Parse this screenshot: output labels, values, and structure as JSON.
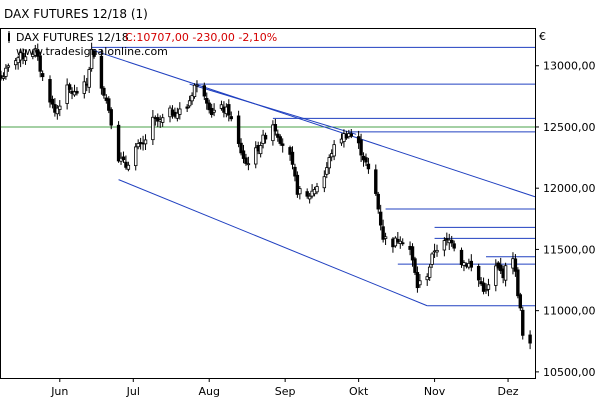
{
  "window": {
    "title": "DAX FUTURES 12/18 (1)"
  },
  "legend": {
    "symbol": "DAX FUTURES 12/18",
    "close_text": "C:10707,00",
    "change_text": "-230,00",
    "change_pct_text": "-2,10%",
    "close_color": "#d40000"
  },
  "watermark": "www.tradesignalonline.com",
  "currency": "€",
  "colors": {
    "candle": "#000000",
    "trendline": "#2040c0",
    "level_line": "#2040c0",
    "green_line": "#4aa04a",
    "frame": "#000000"
  },
  "chart_data": {
    "type": "candlestick",
    "title": "DAX FUTURES 12/18",
    "ylim": [
      10450,
      13300
    ],
    "yticks": [
      10500,
      11000,
      11500,
      12000,
      12500,
      13000
    ],
    "ytick_labels": [
      "10500,00",
      "11000,00",
      "11500,00",
      "12000,00",
      "12500,00",
      "13000,00"
    ],
    "xlim": [
      "2018-05-08",
      "2018-12-12"
    ],
    "month_ticks": [
      {
        "label": "Jun",
        "date": "2018-06-01"
      },
      {
        "label": "Jul",
        "date": "2018-07-01"
      },
      {
        "label": "Aug",
        "date": "2018-08-01"
      },
      {
        "label": "Sep",
        "date": "2018-09-01"
      },
      {
        "label": "Okt",
        "date": "2018-10-01"
      },
      {
        "label": "Nov",
        "date": "2018-11-01"
      },
      {
        "label": "Dez",
        "date": "2018-12-01"
      }
    ],
    "close_path": [
      [
        "2018-05-08",
        12900
      ],
      [
        "2018-05-14",
        13060
      ],
      [
        "2018-05-17",
        13080
      ],
      [
        "2018-05-22",
        13120
      ],
      [
        "2018-05-25",
        12900
      ],
      [
        "2018-05-30",
        12620
      ],
      [
        "2018-06-04",
        12810
      ],
      [
        "2018-06-07",
        12770
      ],
      [
        "2018-06-12",
        12850
      ],
      [
        "2018-06-14",
        13120
      ],
      [
        "2018-06-18",
        12850
      ],
      [
        "2018-06-21",
        12650
      ],
      [
        "2018-06-25",
        12250
      ],
      [
        "2018-06-28",
        12180
      ],
      [
        "2018-07-02",
        12330
      ],
      [
        "2018-07-05",
        12350
      ],
      [
        "2018-07-09",
        12550
      ],
      [
        "2018-07-12",
        12540
      ],
      [
        "2018-07-16",
        12620
      ],
      [
        "2018-07-19",
        12620
      ],
      [
        "2018-07-23",
        12660
      ],
      [
        "2018-07-26",
        12840
      ],
      [
        "2018-07-30",
        12780
      ],
      [
        "2018-08-02",
        12620
      ],
      [
        "2018-08-06",
        12650
      ],
      [
        "2018-08-09",
        12620
      ],
      [
        "2018-08-13",
        12350
      ],
      [
        "2018-08-16",
        12200
      ],
      [
        "2018-08-20",
        12300
      ],
      [
        "2018-08-23",
        12400
      ],
      [
        "2018-08-27",
        12530
      ],
      [
        "2018-08-30",
        12400
      ],
      [
        "2018-09-03",
        12250
      ],
      [
        "2018-09-06",
        11980
      ],
      [
        "2018-09-10",
        11920
      ],
      [
        "2018-09-13",
        12000
      ],
      [
        "2018-09-17",
        12100
      ],
      [
        "2018-09-20",
        12300
      ],
      [
        "2018-09-24",
        12420
      ],
      [
        "2018-09-27",
        12450
      ],
      [
        "2018-10-01",
        12350
      ],
      [
        "2018-10-04",
        12200
      ],
      [
        "2018-10-08",
        11950
      ],
      [
        "2018-10-11",
        11600
      ],
      [
        "2018-10-15",
        11550
      ],
      [
        "2018-10-18",
        11600
      ],
      [
        "2018-10-22",
        11500
      ],
      [
        "2018-10-25",
        11200
      ],
      [
        "2018-10-29",
        11300
      ],
      [
        "2018-11-01",
        11500
      ],
      [
        "2018-11-05",
        11550
      ],
      [
        "2018-11-08",
        11580
      ],
      [
        "2018-11-12",
        11400
      ],
      [
        "2018-11-15",
        11380
      ],
      [
        "2018-11-19",
        11250
      ],
      [
        "2018-11-22",
        11150
      ],
      [
        "2018-11-26",
        11350
      ],
      [
        "2018-11-29",
        11300
      ],
      [
        "2018-12-03",
        11450
      ],
      [
        "2018-12-06",
        11000
      ],
      [
        "2018-12-07",
        10790
      ],
      [
        "2018-12-10",
        10707
      ]
    ],
    "trendlines": [
      {
        "from": [
          "2018-06-14",
          13130
        ],
        "to": [
          "2018-12-12",
          11930
        ]
      },
      {
        "from": [
          "2018-06-25",
          12070
        ],
        "to": [
          "2018-10-29",
          11040
        ]
      },
      {
        "from": [
          "2018-07-24",
          12850
        ],
        "to": [
          "2018-09-30",
          12440
        ]
      }
    ],
    "level_lines": [
      {
        "value": 13150,
        "from": "2018-06-14"
      },
      {
        "value": 12850,
        "from": "2018-07-26"
      },
      {
        "value": 12570,
        "from": "2018-08-27"
      },
      {
        "value": 12460,
        "from": "2018-09-27"
      },
      {
        "value": 11830,
        "from": "2018-10-12"
      },
      {
        "value": 11680,
        "from": "2018-11-01"
      },
      {
        "value": 11590,
        "from": "2018-11-01"
      },
      {
        "value": 11440,
        "from": "2018-11-22"
      },
      {
        "value": 11380,
        "from": "2018-10-17"
      },
      {
        "value": 11040,
        "from": "2018-10-29"
      }
    ],
    "green_level": 12500
  }
}
